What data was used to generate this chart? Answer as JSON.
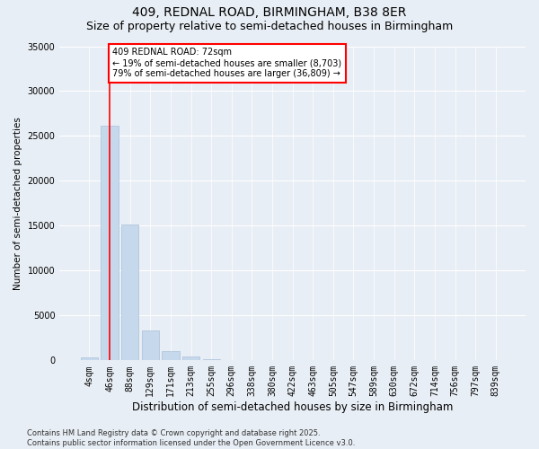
{
  "title1": "409, REDNAL ROAD, BIRMINGHAM, B38 8ER",
  "title2": "Size of property relative to semi-detached houses in Birmingham",
  "xlabel": "Distribution of semi-detached houses by size in Birmingham",
  "ylabel": "Number of semi-detached properties",
  "categories": [
    "4sqm",
    "46sqm",
    "88sqm",
    "129sqm",
    "171sqm",
    "213sqm",
    "255sqm",
    "296sqm",
    "338sqm",
    "380sqm",
    "422sqm",
    "463sqm",
    "505sqm",
    "547sqm",
    "589sqm",
    "630sqm",
    "672sqm",
    "714sqm",
    "756sqm",
    "797sqm",
    "839sqm"
  ],
  "values": [
    350,
    26100,
    15100,
    3350,
    1050,
    450,
    150,
    50,
    10,
    5,
    2,
    1,
    0,
    0,
    0,
    0,
    0,
    0,
    0,
    0,
    0
  ],
  "bar_color": "#c6d9ec",
  "bar_edge_color": "#aabfd8",
  "property_label": "409 REDNAL ROAD: 72sqm",
  "pct_smaller": 19,
  "count_smaller": 8703,
  "pct_larger": 79,
  "count_larger": 36809,
  "vline_x": 1.0,
  "ylim": [
    0,
    35000
  ],
  "yticks": [
    0,
    5000,
    10000,
    15000,
    20000,
    25000,
    30000,
    35000
  ],
  "background_color": "#e8eef5",
  "plot_bg_color": "#e8eef5",
  "footer": "Contains HM Land Registry data © Crown copyright and database right 2025.\nContains public sector information licensed under the Open Government Licence v3.0.",
  "title1_fontsize": 10,
  "title2_fontsize": 9,
  "xlabel_fontsize": 8.5,
  "ylabel_fontsize": 7.5,
  "tick_fontsize": 7,
  "footer_fontsize": 6,
  "ann_fontsize": 7
}
